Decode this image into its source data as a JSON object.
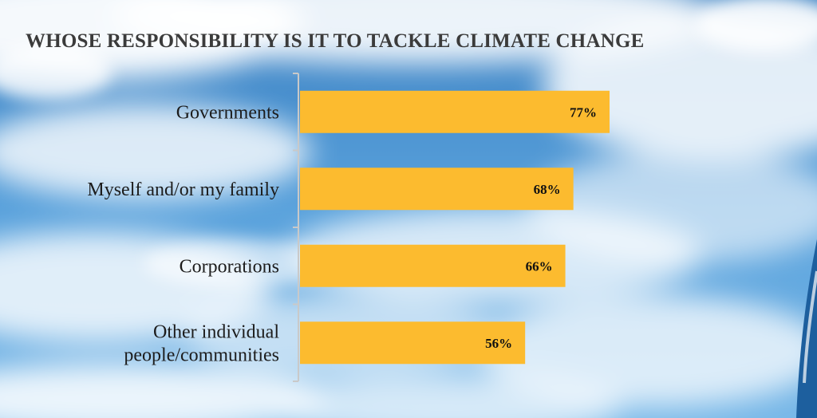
{
  "chart_data": {
    "type": "bar",
    "orientation": "horizontal",
    "title": "WHOSE RESPONSIBILITY IS IT TO TACKLE CLIMATE CHANGE",
    "categories": [
      [
        "Governments"
      ],
      [
        "Myself and/or my family"
      ],
      [
        "Corporations"
      ],
      [
        "Other individual",
        "people/communities"
      ]
    ],
    "values": [
      77,
      68,
      66,
      56
    ],
    "value_labels": [
      "77%",
      "68%",
      "66%",
      "56%"
    ],
    "xlim": [
      0,
      100
    ],
    "grid": false,
    "legend": "none"
  },
  "colors": {
    "bar": "#FCBB2F",
    "axis": "#c9c9c9",
    "sky_top": "#3f86c7",
    "sky_bottom": "#6cb0e3"
  },
  "decor": {
    "background": "sky-with-clouds",
    "right_edge": "partial-banner"
  }
}
